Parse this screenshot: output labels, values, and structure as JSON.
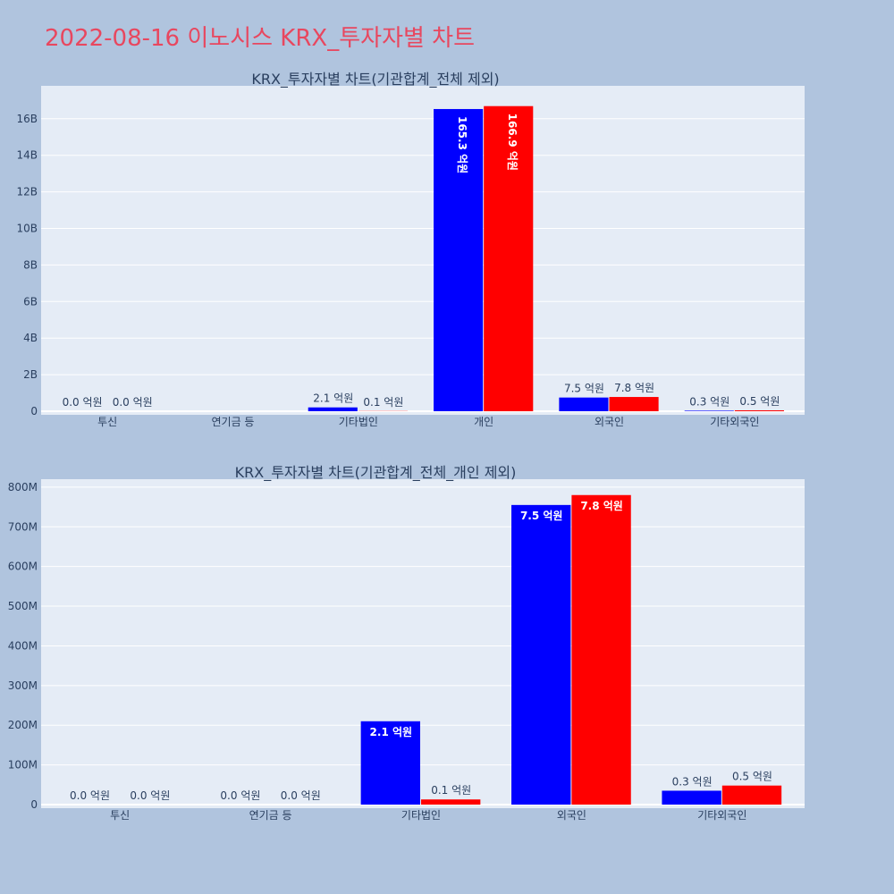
{
  "page_title": "2022-08-16 이노시스 KRX_투자자별 차트",
  "chart_data": [
    {
      "type": "bar",
      "title": "KRX_투자자별 차트(기관합계_전체 제외)",
      "categories": [
        "투신",
        "연기금 등",
        "기타법인",
        "개인",
        "외국인",
        "기타외국인"
      ],
      "series": [
        {
          "color": "#0000ff",
          "values": [
            0,
            null,
            210000000,
            16530000000,
            750000000,
            30000000
          ],
          "labels": [
            "0.0 억원",
            "",
            "2.1 억원",
            "165.3 억원",
            "7.5 억원",
            "0.3 억원"
          ]
        },
        {
          "color": "#ff0000",
          "values": [
            0,
            null,
            10000000,
            16690000000,
            780000000,
            50000000
          ],
          "labels": [
            "0.0 억원",
            "",
            "0.1 억원",
            "166.9 억원",
            "7.8 억원",
            "0.5 억원"
          ]
        }
      ],
      "yticks": [
        0,
        2000000000,
        4000000000,
        6000000000,
        8000000000,
        10000000000,
        12000000000,
        14000000000,
        16000000000
      ],
      "ytick_labels": [
        "0",
        "2B",
        "4B",
        "6B",
        "8B",
        "10B",
        "12B",
        "14B",
        "16B"
      ],
      "ylim": [
        0,
        17800000000
      ],
      "grid": true,
      "plot_bg": "#e5ecf6"
    },
    {
      "type": "bar",
      "title": "KRX_투자자별 차트(기관합계_전체_개인 제외)",
      "categories": [
        "투신",
        "연기금 등",
        "기타법인",
        "외국인",
        "기타외국인"
      ],
      "series": [
        {
          "color": "#0000ff",
          "values": [
            0,
            0,
            210000000,
            755000000,
            35000000
          ],
          "labels": [
            "0.0 억원",
            "0.0 억원",
            "2.1 억원",
            "7.5 억원",
            "0.3 억원"
          ]
        },
        {
          "color": "#ff0000",
          "values": [
            0,
            0,
            13000000,
            780000000,
            48000000
          ],
          "labels": [
            "0.0 억원",
            "0.0 억원",
            "0.1 억원",
            "7.8 억원",
            "0.5 억원"
          ]
        }
      ],
      "yticks": [
        0,
        100000000,
        200000000,
        300000000,
        400000000,
        500000000,
        600000000,
        700000000,
        800000000
      ],
      "ytick_labels": [
        "0",
        "100M",
        "200M",
        "300M",
        "400M",
        "500M",
        "600M",
        "700M",
        "800M"
      ],
      "ylim": [
        0,
        820000000
      ],
      "grid": true,
      "plot_bg": "#e5ecf6"
    }
  ]
}
